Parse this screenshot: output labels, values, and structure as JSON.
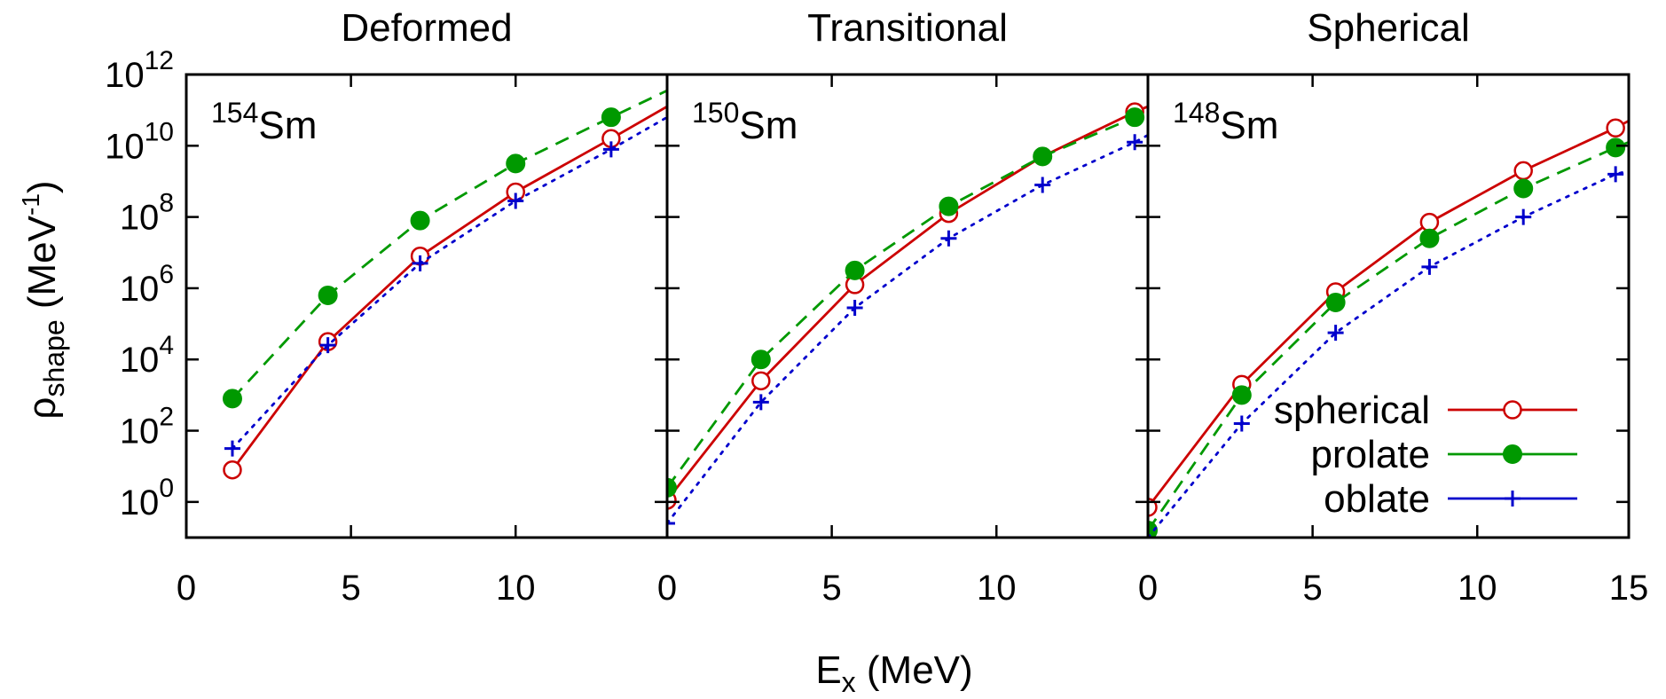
{
  "chart_data": {
    "type": "line",
    "xlabel": "E",
    "xlabel_sub": "x",
    "xlabel_unit": " (MeV)",
    "ylabel": "ρ",
    "ylabel_sub": "shape",
    "ylabel_unit_open": " (MeV",
    "ylabel_unit_sup": "-1",
    "ylabel_unit_close": ")",
    "xlim": [
      0,
      14.6
    ],
    "ylog_lim": [
      -1,
      12
    ],
    "x_ticks": [
      "0",
      "5",
      "10"
    ],
    "x_ticks_last_panel": [
      "0",
      "5",
      "10",
      "15"
    ],
    "y_tick_base": "10",
    "y_tick_exponents": [
      "0",
      "2",
      "4",
      "6",
      "8",
      "10",
      "12"
    ],
    "y_scale": "log10",
    "legend": {
      "placement": "bottom-right of third panel",
      "entries": [
        {
          "label": "spherical",
          "color": "#cc0000",
          "line": "solid",
          "marker": "open-circle"
        },
        {
          "label": "prolate",
          "color": "#009900",
          "line": "dashed",
          "marker": "filled-circle"
        },
        {
          "label": "oblate",
          "color": "#0000cc",
          "line": "dotted",
          "marker": "plus"
        }
      ]
    },
    "panels": [
      {
        "title": "Deformed",
        "nucleus_mass": "154",
        "nucleus_symbol": "Sm",
        "series": [
          {
            "name": "spherical",
            "log10_x": [
              1.4,
              4.3,
              7.1,
              10.0,
              12.9,
              14.6
            ],
            "log10_y": [
              0.9,
              4.5,
              6.9,
              8.7,
              10.2,
              11.1
            ]
          },
          {
            "name": "prolate",
            "log10_x": [
              1.4,
              4.3,
              7.1,
              10.0,
              12.9,
              14.6
            ],
            "log10_y": [
              2.9,
              5.8,
              7.9,
              9.5,
              10.8,
              11.55
            ]
          },
          {
            "name": "oblate",
            "log10_x": [
              1.4,
              4.3,
              7.1,
              10.0,
              12.9,
              14.6
            ],
            "log10_y": [
              1.5,
              4.4,
              6.7,
              8.45,
              9.9,
              10.8
            ]
          }
        ]
      },
      {
        "title": "Transitional",
        "nucleus_mass": "150",
        "nucleus_symbol": "Sm",
        "series": [
          {
            "name": "spherical",
            "log10_x": [
              0,
              2.85,
              5.7,
              8.55,
              11.4,
              14.2,
              14.6
            ],
            "log10_y": [
              0.05,
              3.4,
              6.1,
              8.1,
              9.7,
              10.95,
              11.1
            ]
          },
          {
            "name": "prolate",
            "log10_x": [
              0,
              2.85,
              5.7,
              8.55,
              11.4,
              14.2,
              14.6
            ],
            "log10_y": [
              0.4,
              4.0,
              6.5,
              8.3,
              9.7,
              10.8,
              11.0
            ]
          },
          {
            "name": "oblate",
            "log10_x": [
              0,
              2.85,
              5.7,
              8.55,
              11.4,
              14.2,
              14.6
            ],
            "log10_y": [
              -0.6,
              2.8,
              5.45,
              7.4,
              8.9,
              10.1,
              10.3
            ]
          }
        ]
      },
      {
        "title": "Spherical",
        "nucleus_mass": "148",
        "nucleus_symbol": "Sm",
        "series": [
          {
            "name": "spherical",
            "log10_x": [
              0,
              2.85,
              5.7,
              8.55,
              11.4,
              14.2,
              14.6
            ],
            "log10_y": [
              -0.15,
              3.3,
              5.9,
              7.85,
              9.3,
              10.5,
              10.7
            ]
          },
          {
            "name": "prolate",
            "log10_x": [
              0,
              2.85,
              5.7,
              8.55,
              11.4,
              14.2,
              14.6
            ],
            "log10_y": [
              -0.8,
              3.0,
              5.6,
              7.4,
              8.8,
              9.95,
              10.1
            ]
          },
          {
            "name": "oblate",
            "log10_x": [
              0,
              2.85,
              5.7,
              8.55,
              11.4,
              14.2,
              14.6
            ],
            "log10_y": [
              -1.0,
              2.2,
              4.75,
              6.6,
              8.0,
              9.2,
              9.3
            ]
          }
        ]
      }
    ]
  }
}
